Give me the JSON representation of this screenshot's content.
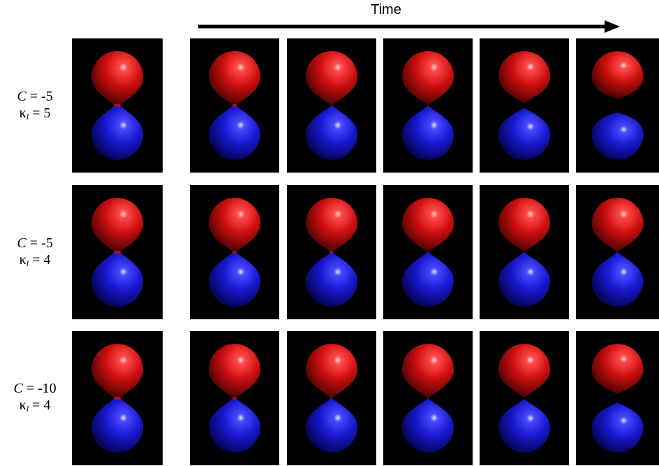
{
  "header": {
    "title": "Time"
  },
  "rows": [
    {
      "c_symbol": "C",
      "c_value": "= -5",
      "kappa_symbol": "κ",
      "kappa_sub": "l",
      "kappa_value": "= 5",
      "frames": [
        {
          "neck": 0.55,
          "gap": 0
        },
        {
          "neck": 0.35,
          "gap": 0
        },
        {
          "neck": 0.18,
          "gap": 0
        },
        {
          "neck": 0.05,
          "gap": 0
        },
        {
          "neck": 0,
          "gap": 0.3
        },
        {
          "neck": 0,
          "gap": 1
        }
      ]
    },
    {
      "c_symbol": "C",
      "c_value": "= -5",
      "kappa_symbol": "κ",
      "kappa_sub": "l",
      "kappa_value": "= 4",
      "frames": [
        {
          "neck": 0.6,
          "gap": 0
        },
        {
          "neck": 0.35,
          "gap": 0
        },
        {
          "neck": 0.25,
          "gap": 0
        },
        {
          "neck": 0.18,
          "gap": 0
        },
        {
          "neck": 0.12,
          "gap": 0
        },
        {
          "neck": 0.1,
          "gap": 0
        }
      ]
    },
    {
      "c_symbol": "C",
      "c_value": "= -10",
      "kappa_symbol": "κ",
      "kappa_sub": "l",
      "kappa_value": "= 4",
      "frames": [
        {
          "neck": 0.6,
          "gap": 0
        },
        {
          "neck": 0.32,
          "gap": 0
        },
        {
          "neck": 0.15,
          "gap": 0
        },
        {
          "neck": 0.1,
          "gap": 0
        },
        {
          "neck": 0.05,
          "gap": 0.1
        },
        {
          "neck": 0,
          "gap": 0.6
        }
      ]
    }
  ],
  "colors": {
    "background": "#000000",
    "upper_lobe": "#d01010",
    "lower_lobe": "#1818d0",
    "arrow": "#000000"
  }
}
